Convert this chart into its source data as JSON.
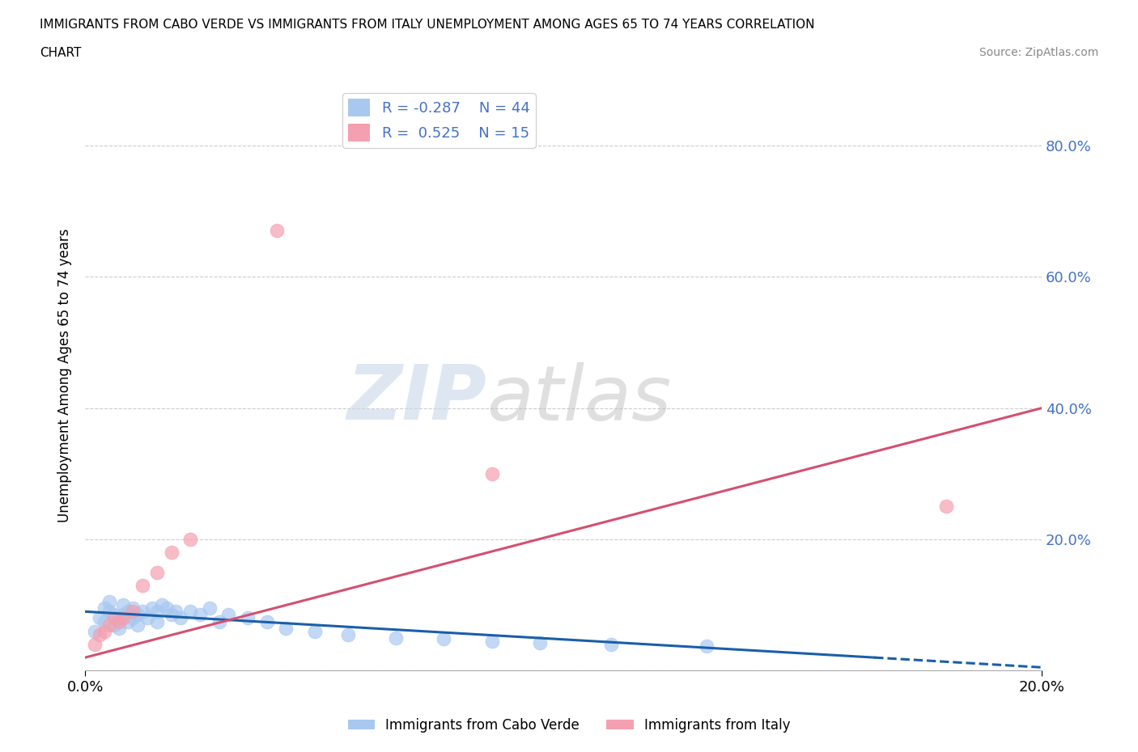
{
  "title_line1": "IMMIGRANTS FROM CABO VERDE VS IMMIGRANTS FROM ITALY UNEMPLOYMENT AMONG AGES 65 TO 74 YEARS CORRELATION",
  "title_line2": "CHART",
  "source_text": "Source: ZipAtlas.com",
  "ylabel": "Unemployment Among Ages 65 to 74 years",
  "xlim": [
    0.0,
    0.2
  ],
  "ylim": [
    0.0,
    0.9
  ],
  "yticks": [
    0.0,
    0.2,
    0.4,
    0.6,
    0.8
  ],
  "ytick_labels": [
    "",
    "20.0%",
    "40.0%",
    "60.0%",
    "80.0%"
  ],
  "xtick_labels": [
    "0.0%",
    "20.0%"
  ],
  "cabo_verde_R": -0.287,
  "cabo_verde_N": 44,
  "italy_R": 0.525,
  "italy_N": 15,
  "cabo_verde_color": "#a8c8f0",
  "italy_color": "#f4a0b0",
  "cabo_verde_line_color": "#1a5fa8",
  "italy_line_color": "#d45070",
  "cabo_verde_scatter_x": [
    0.002,
    0.003,
    0.004,
    0.004,
    0.005,
    0.005,
    0.006,
    0.006,
    0.007,
    0.007,
    0.008,
    0.008,
    0.009,
    0.009,
    0.01,
    0.01,
    0.011,
    0.011,
    0.012,
    0.013,
    0.014,
    0.015,
    0.015,
    0.016,
    0.017,
    0.018,
    0.019,
    0.02,
    0.022,
    0.024,
    0.026,
    0.028,
    0.03,
    0.034,
    0.038,
    0.042,
    0.048,
    0.055,
    0.065,
    0.075,
    0.085,
    0.095,
    0.11,
    0.13
  ],
  "cabo_verde_scatter_y": [
    0.06,
    0.08,
    0.075,
    0.095,
    0.09,
    0.105,
    0.07,
    0.085,
    0.065,
    0.08,
    0.085,
    0.1,
    0.075,
    0.09,
    0.08,
    0.095,
    0.07,
    0.085,
    0.09,
    0.08,
    0.095,
    0.075,
    0.09,
    0.1,
    0.095,
    0.085,
    0.09,
    0.08,
    0.09,
    0.085,
    0.095,
    0.075,
    0.085,
    0.08,
    0.075,
    0.065,
    0.06,
    0.055,
    0.05,
    0.048,
    0.045,
    0.042,
    0.04,
    0.038
  ],
  "italy_scatter_x": [
    0.002,
    0.003,
    0.004,
    0.005,
    0.006,
    0.007,
    0.008,
    0.01,
    0.012,
    0.015,
    0.018,
    0.022,
    0.04,
    0.085,
    0.18
  ],
  "italy_scatter_y": [
    0.04,
    0.055,
    0.06,
    0.07,
    0.08,
    0.075,
    0.08,
    0.09,
    0.13,
    0.15,
    0.18,
    0.2,
    0.67,
    0.3,
    0.25
  ],
  "watermark_zip": "ZIP",
  "watermark_atlas": "atlas",
  "grid_color": "#cccccc",
  "background_color": "#ffffff",
  "legend_label_1": "R = -0.287    N = 44",
  "legend_label_2": "R =  0.525    N = 15",
  "bottom_legend_1": "Immigrants from Cabo Verde",
  "bottom_legend_2": "Immigrants from Italy"
}
